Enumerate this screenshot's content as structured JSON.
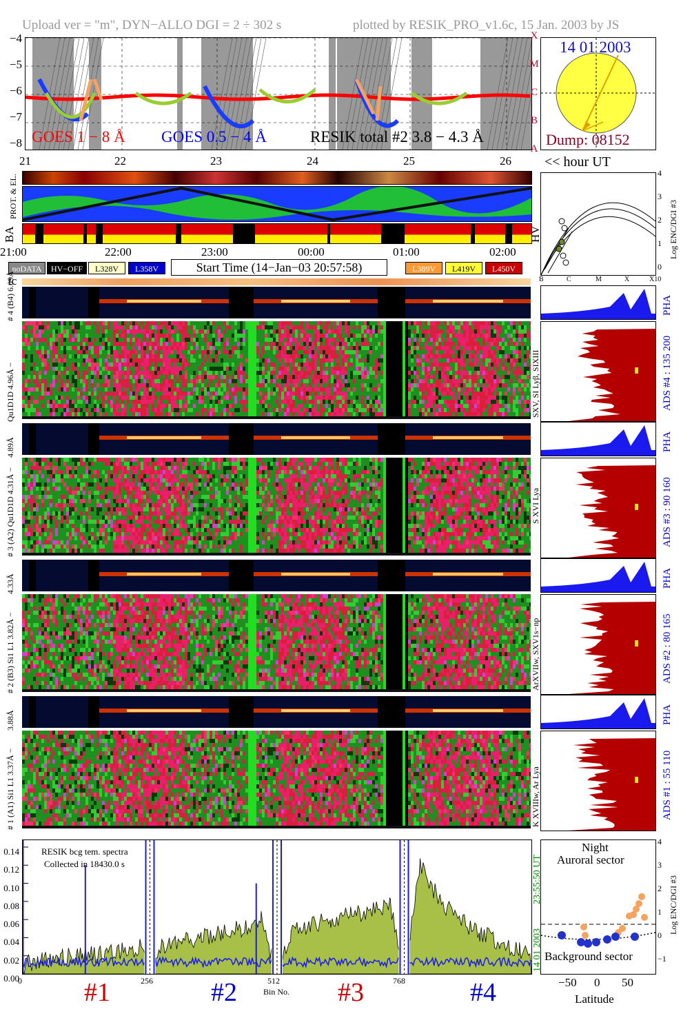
{
  "header": {
    "left": "Upload ver = \"m\", DYN−ALLO DGI =   2 ÷ 302 s",
    "right": "plotted by RESIK_PRO_v1.6c, 15 Jan. 2003 by JS"
  },
  "goes_panel": {
    "yticks": [
      "−4",
      "−5",
      "−6",
      "−7",
      "−8"
    ],
    "classes": [
      "X",
      "M",
      "C",
      "B",
      "A"
    ],
    "label_goes1": "GOES 1 − 8 Å",
    "label_goes2": "GOES 0.5 − 4 Å",
    "label_resik": "RESIK total #2  3.8 − 4.3 Å",
    "colors": {
      "goes1": "#ff0000",
      "goes2": "#0000ff",
      "resik": "#000000",
      "class": "#aa1133"
    }
  },
  "sun_panel": {
    "date": "14 01 2003",
    "dump": "Dump: 08152",
    "date_color": "#1010c0",
    "dump_color": "#880022",
    "sun_color": "#ffff44"
  },
  "hour_axis_top": {
    "ticks": [
      "21",
      "22",
      "23",
      "24",
      "25",
      "26"
    ],
    "label": "<< hour UT"
  },
  "row_labels": {
    "prot": "PROT. & EL.",
    "ba": "BA",
    "hv": "HV"
  },
  "time_axis": {
    "ticks": [
      "21:00",
      "22:00",
      "23:00",
      "00:00",
      "01:00",
      "02:00"
    ]
  },
  "legend": {
    "items": [
      {
        "label": "noDATA",
        "bg": "#888888",
        "fg": "#ffffff"
      },
      {
        "label": "HV−OFF",
        "bg": "#000000",
        "fg": "#ffffff"
      },
      {
        "label": "L328V",
        "bg": "#ffffcc",
        "fg": "#000000"
      },
      {
        "label": "L358V",
        "bg": "#0000cc",
        "fg": "#ffffff"
      },
      {
        "label": "L389V",
        "bg": "#ff9933",
        "fg": "#ffffff"
      },
      {
        "label": "L419V",
        "bg": "#ffff33",
        "fg": "#000000"
      },
      {
        "label": "L450V",
        "bg": "#cc0000",
        "fg": "#ffffff"
      }
    ],
    "start_time": "Start Time (14−Jan−03 20:57:58)"
  },
  "tc_label": "tc",
  "hv_panel": {
    "yticks": [
      "4",
      "3",
      "2",
      "1",
      "0"
    ],
    "ylabel": "Log ENC/DGI #3",
    "xticks": [
      "B",
      "C",
      "M",
      "X",
      "X10"
    ]
  },
  "channels": [
    {
      "pha_label": "# 4 (B4)  6.09Å",
      "spec_label": "Qu1D1D 4.96Å −",
      "lines": "SXV, SI Lyβ, SIXIII",
      "ads": "ADS #4 :   135 200",
      "pha": "PHA"
    },
    {
      "pha_label": "4.89Å",
      "spec_label": "# 3 (A2) Qu1D1D 4.31Å −",
      "lines": "S XVI Lya",
      "ads": "ADS #3 :   90 160",
      "pha": "PHA"
    },
    {
      "pha_label": "4.33Å",
      "spec_label": "# 2 (B3) Si1 L1 3.82Å −",
      "lines": "ArXVIIw, SXV1s−np",
      "ads": "ADS #2 :   80 165",
      "pha": "PHA"
    },
    {
      "pha_label": "3.88Å",
      "spec_label": "# 1 (A1) Si1 L1 3.37Å −",
      "lines": "K XVIIIw, Ar Lya",
      "ads": "ADS #1 :   55 110",
      "pha": "PHA"
    }
  ],
  "bottom_panel": {
    "note1": "RESIK bcg tem. spectra",
    "note2": "Collected in 18430.0 s",
    "yticks": [
      "0.14",
      "0.12",
      "0.10",
      "0.08",
      "0.06",
      "0.04",
      "0.02",
      "0.00"
    ],
    "xticks": [
      "0",
      "256",
      "512",
      "768"
    ],
    "xlabel": "Bin No.",
    "side_date": "14 01 2003",
    "side_time": "23:55:50 UT",
    "channel_labels": [
      {
        "text": "#1",
        "color": "#cc0000"
      },
      {
        "text": "#2",
        "color": "#0000cc"
      },
      {
        "text": "#3",
        "color": "#cc0000"
      },
      {
        "text": "#4",
        "color": "#0000cc"
      }
    ]
  },
  "latitude_panel": {
    "title1": "Night",
    "title2": "Auroral sector",
    "footer": "Background sector",
    "xlabel": "Latitude",
    "xticks": [
      "−50",
      "0",
      "50"
    ],
    "yticks": [
      "4",
      "3",
      "2",
      "1",
      "0",
      "−1"
    ],
    "ylabel": "Log ENC/DGI #3"
  },
  "chart_data": {
    "type": "line",
    "title": "",
    "xlabel": "Bin No.",
    "ylabel": "",
    "xlim": [
      0,
      1024
    ],
    "ylim": [
      0,
      0.14
    ],
    "series": [
      {
        "x": [
          0,
          40,
          80,
          120,
          160,
          200,
          240,
          256,
          280,
          320,
          360,
          400,
          440,
          480,
          512,
          540,
          580,
          620,
          660,
          700,
          740,
          768,
          800,
          840,
          880,
          920,
          960,
          1000,
          1024
        ],
        "values": [
          0.01,
          0.015,
          0.018,
          0.02,
          0.022,
          0.025,
          0.03,
          0.0,
          0.03,
          0.035,
          0.04,
          0.045,
          0.05,
          0.06,
          0.0,
          0.045,
          0.055,
          0.06,
          0.065,
          0.07,
          0.075,
          0.0,
          0.12,
          0.08,
          0.06,
          0.045,
          0.035,
          0.025,
          0.02
        ]
      },
      {
        "x": [
          0,
          128,
          256,
          384,
          512,
          640,
          768,
          896,
          1024
        ],
        "values": [
          0.01,
          0.01,
          0.0,
          0.015,
          0.0,
          0.01,
          0.0,
          0.01,
          0.008
        ]
      }
    ]
  }
}
